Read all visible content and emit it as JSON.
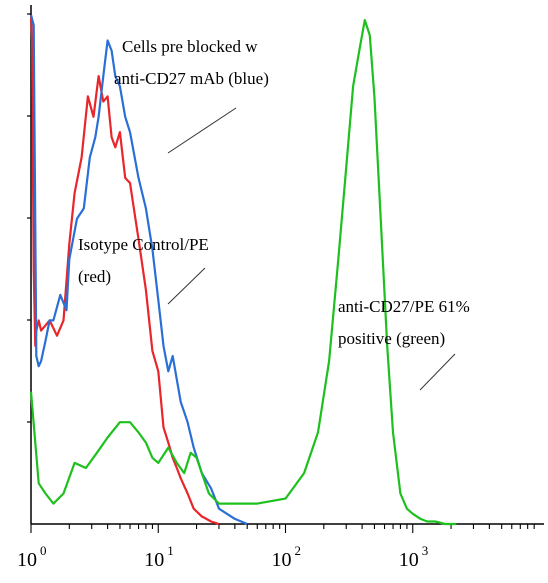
{
  "chart_data": {
    "type": "line",
    "x_scale": "log",
    "xlim": [
      1,
      10000
    ],
    "ylim": [
      0,
      100
    ],
    "grid": false,
    "x_ticks": [
      {
        "base": "10",
        "exp": "0",
        "value": 1
      },
      {
        "base": "10",
        "exp": "1",
        "value": 10
      },
      {
        "base": "10",
        "exp": "2",
        "value": 100
      },
      {
        "base": "10",
        "exp": "3",
        "value": 1000
      }
    ],
    "annotations": [
      {
        "lines": [
          "Cells pre blocked w",
          "anti-CD27 mAb (blue)"
        ],
        "target": [
          12,
          83
        ]
      },
      {
        "lines": [
          "Isotype Control/PE",
          "(red)"
        ],
        "target": [
          12,
          52
        ]
      },
      {
        "lines": [
          "anti-CD27/PE  61%",
          "positive (green)"
        ],
        "target": [
          1150,
          31
        ]
      }
    ],
    "series": [
      {
        "color": "#e8262b",
        "x": [
          1,
          1.02,
          1.05,
          1.08,
          1.1,
          1.15,
          1.2,
          1.4,
          1.6,
          1.8,
          2.0,
          2.2,
          2.5,
          2.8,
          3.1,
          3.4,
          3.7,
          4.0,
          4.3,
          4.6,
          5.0,
          5.5,
          6.0,
          7.0,
          8.0,
          9.0,
          10,
          11,
          12,
          13,
          14,
          15,
          17,
          19,
          22,
          26,
          30
        ],
        "y": [
          100,
          95,
          50,
          35,
          38,
          40,
          38,
          40,
          37,
          40,
          55,
          65,
          72,
          84,
          80,
          88,
          83,
          84,
          76,
          74,
          77,
          68,
          67,
          56,
          46,
          34,
          30,
          19,
          16,
          13,
          11,
          9,
          6,
          3,
          1.5,
          0.5,
          0
        ]
      },
      {
        "color": "#2a6fd6",
        "x": [
          1,
          1.05,
          1.1,
          1.15,
          1.2,
          1.3,
          1.4,
          1.5,
          1.7,
          1.9,
          2.0,
          2.3,
          2.6,
          2.9,
          3.2,
          3.4,
          3.7,
          4.0,
          4.3,
          4.6,
          5.0,
          5.5,
          6.0,
          7.0,
          8.0,
          9.0,
          10,
          11,
          12,
          13,
          15,
          17,
          19,
          22,
          26,
          30,
          40,
          50
        ],
        "y": [
          100,
          98,
          33,
          31,
          32,
          36,
          40,
          40,
          45,
          42,
          52,
          60,
          62,
          72,
          76,
          80,
          88,
          95,
          93,
          88,
          86,
          80,
          77,
          68,
          62,
          54,
          44,
          35,
          30,
          33,
          24,
          20,
          15,
          10,
          7,
          3,
          1,
          0
        ]
      },
      {
        "color": "#1ec01e",
        "x": [
          1,
          1.15,
          1.3,
          1.5,
          1.8,
          2.2,
          2.7,
          3.3,
          4.0,
          5.0,
          6.0,
          7.0,
          8.0,
          9.0,
          10,
          12,
          14,
          16,
          18,
          20,
          22,
          25,
          30,
          40,
          60,
          100,
          140,
          180,
          220,
          260,
          300,
          340,
          380,
          420,
          460,
          500,
          560,
          630,
          700,
          800,
          900,
          1000,
          1150,
          1300,
          1500,
          1800,
          2200
        ],
        "y": [
          26,
          8,
          6,
          4,
          6,
          12,
          11,
          14,
          17,
          20,
          20,
          18,
          16,
          13,
          12,
          15,
          12,
          10,
          14,
          13,
          10,
          6,
          4,
          4,
          4,
          5,
          10,
          18,
          32,
          52,
          70,
          86,
          93,
          99,
          96,
          84,
          60,
          35,
          18,
          6,
          3,
          2,
          1,
          0.5,
          0.5,
          0,
          0
        ]
      }
    ]
  }
}
